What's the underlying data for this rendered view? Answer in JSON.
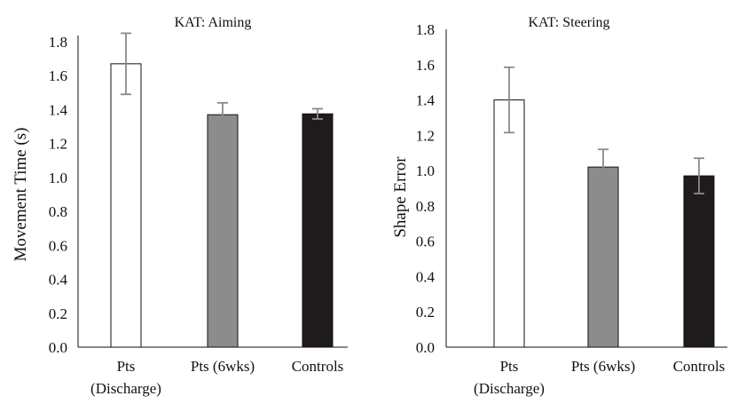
{
  "chart_data": [
    {
      "type": "bar",
      "title": "KAT: Aiming",
      "ylabel": "Movement Time (s)",
      "xlabel": "",
      "ylim": [
        0,
        1.8
      ],
      "yticks": [
        "0.0",
        "0.2",
        "0.4",
        "0.6",
        "0.8",
        "1.0",
        "1.2",
        "1.4",
        "1.6",
        "1.8"
      ],
      "ytick_values": [
        0,
        0.2,
        0.4,
        0.6,
        0.8,
        1.0,
        1.2,
        1.4,
        1.6,
        1.8
      ],
      "categories": [
        {
          "line1": "Pts",
          "line2": "(Discharge)"
        },
        {
          "line1": "Pts (6wks)",
          "line2": ""
        },
        {
          "line1": "Controls",
          "line2": ""
        }
      ],
      "values": [
        1.67,
        1.37,
        1.375
      ],
      "errors": [
        0.18,
        0.07,
        0.03
      ],
      "bar_colors": [
        "#ffffff",
        "#8c8c8c",
        "#1f1a1b"
      ],
      "grid": false
    },
    {
      "type": "bar",
      "title": "KAT: Steering",
      "ylabel": "Shape Error",
      "xlabel": "",
      "ylim": [
        0,
        1.8
      ],
      "yticks": [
        "0.0",
        "0.2",
        "0.4",
        "0.6",
        "0.8",
        "1.0",
        "1.2",
        "1.4",
        "1.6",
        "1.8"
      ],
      "ytick_values": [
        0,
        0.2,
        0.4,
        0.6,
        0.8,
        1.0,
        1.2,
        1.4,
        1.6,
        1.8
      ],
      "categories": [
        {
          "line1": "Pts",
          "line2": "(Discharge)"
        },
        {
          "line1": "Pts (6wks)",
          "line2": ""
        },
        {
          "line1": "Controls",
          "line2": ""
        }
      ],
      "values": [
        1.4,
        1.02,
        0.97
      ],
      "errors": [
        0.185,
        0.1,
        0.1
      ],
      "bar_colors": [
        "#ffffff",
        "#8c8c8c",
        "#1f1a1b"
      ],
      "grid": false
    }
  ]
}
